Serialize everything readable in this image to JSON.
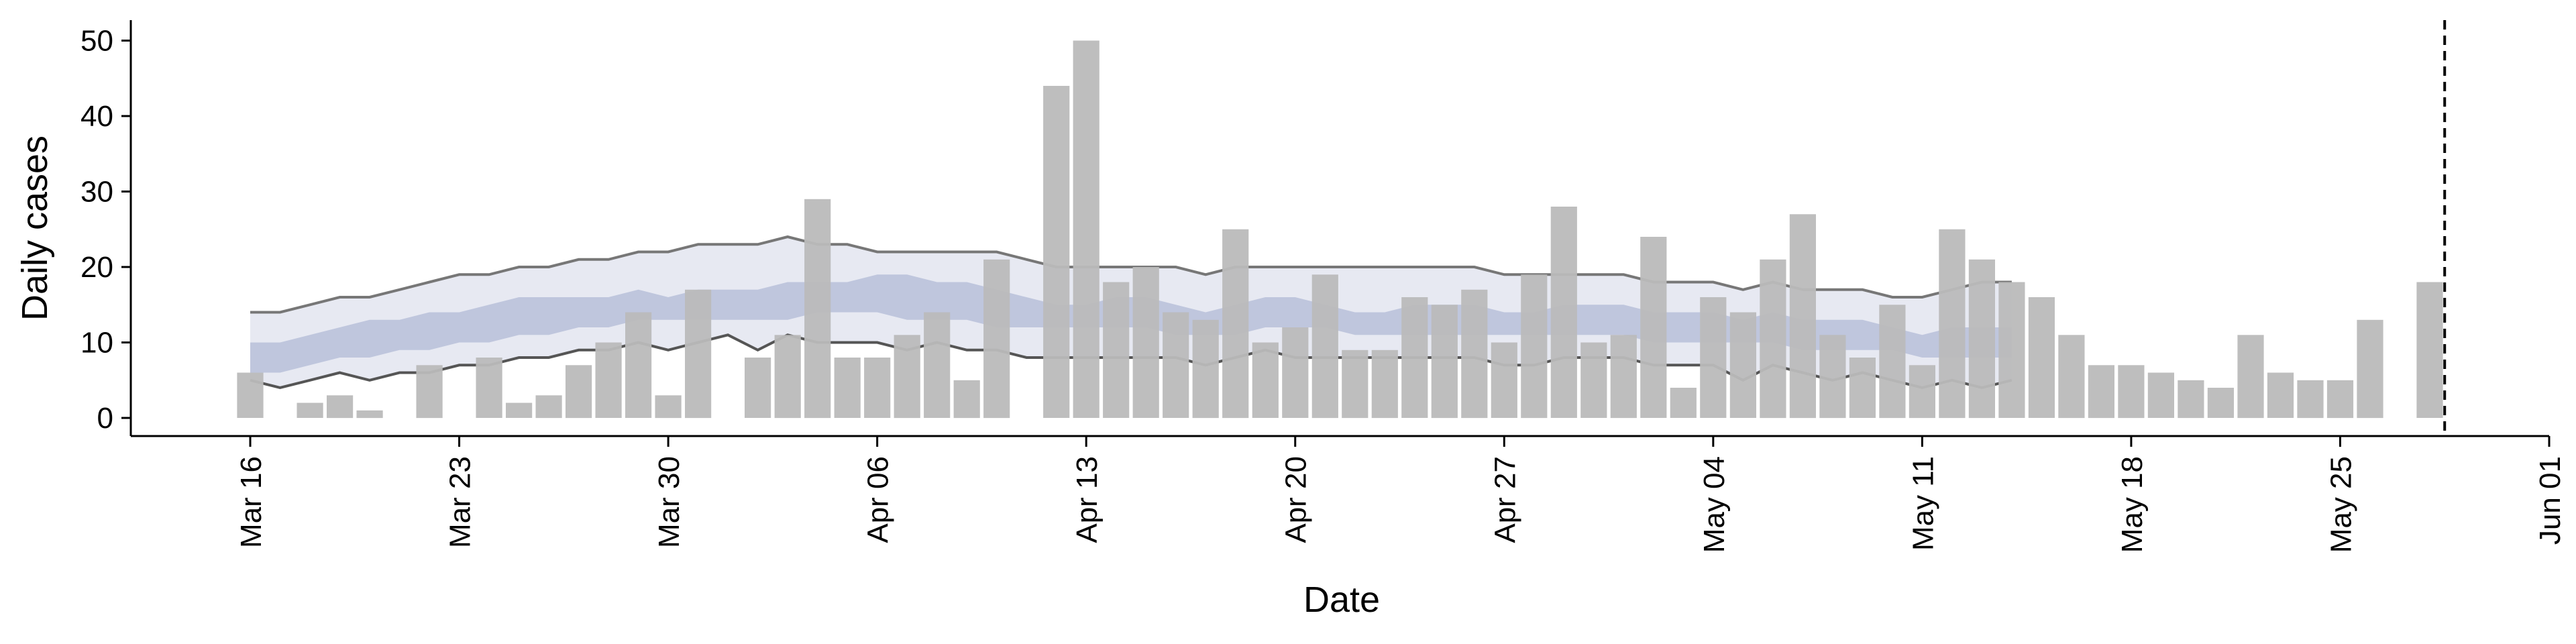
{
  "chart_data": {
    "type": "bar",
    "xlabel": "Date",
    "ylabel": "Daily cases",
    "ylim": [
      0,
      52
    ],
    "y_ticks": [
      0,
      10,
      20,
      30,
      40,
      50
    ],
    "x_tick_labels": [
      "Mar 16",
      "Mar 23",
      "Mar 30",
      "Apr 06",
      "Apr 13",
      "Apr 20",
      "Apr 27",
      "May 04",
      "May 11",
      "May 18",
      "May 25",
      "Jun 01"
    ],
    "x_tick_dates": [
      "2020-03-16",
      "2020-03-23",
      "2020-03-30",
      "2020-04-06",
      "2020-04-13",
      "2020-04-20",
      "2020-04-27",
      "2020-05-04",
      "2020-05-11",
      "2020-05-18",
      "2020-05-25",
      "2020-06-01"
    ],
    "xlim": [
      "2020-03-12",
      "2020-06-01"
    ],
    "grid": false,
    "series": [
      {
        "type": "bar",
        "color": "#bbbbbb",
        "dates": [
          "2020-03-16",
          "2020-03-17",
          "2020-03-18",
          "2020-03-19",
          "2020-03-20",
          "2020-03-21",
          "2020-03-22",
          "2020-03-23",
          "2020-03-24",
          "2020-03-25",
          "2020-03-26",
          "2020-03-27",
          "2020-03-28",
          "2020-03-29",
          "2020-03-30",
          "2020-03-31",
          "2020-04-01",
          "2020-04-02",
          "2020-04-03",
          "2020-04-04",
          "2020-04-05",
          "2020-04-06",
          "2020-04-07",
          "2020-04-08",
          "2020-04-09",
          "2020-04-10",
          "2020-04-11",
          "2020-04-12",
          "2020-04-13",
          "2020-04-14",
          "2020-04-15",
          "2020-04-16",
          "2020-04-17",
          "2020-04-18",
          "2020-04-19",
          "2020-04-20",
          "2020-04-21",
          "2020-04-22",
          "2020-04-23",
          "2020-04-24",
          "2020-04-25",
          "2020-04-26",
          "2020-04-27",
          "2020-04-28",
          "2020-04-29",
          "2020-04-30",
          "2020-05-01",
          "2020-05-02",
          "2020-05-03",
          "2020-05-04",
          "2020-05-05",
          "2020-05-06",
          "2020-05-07",
          "2020-05-08",
          "2020-05-09",
          "2020-05-10",
          "2020-05-11",
          "2020-05-12",
          "2020-05-13",
          "2020-05-14",
          "2020-05-15",
          "2020-05-16",
          "2020-05-17",
          "2020-05-18",
          "2020-05-19",
          "2020-05-20",
          "2020-05-21",
          "2020-05-22",
          "2020-05-23",
          "2020-05-24",
          "2020-05-25",
          "2020-05-26",
          "2020-05-27",
          "2020-05-28",
          "2020-05-29"
        ],
        "values": [
          6,
          0,
          2,
          3,
          1,
          0,
          7,
          0,
          8,
          2,
          3,
          7,
          10,
          14,
          3,
          17,
          0,
          8,
          11,
          29,
          8,
          8,
          11,
          14,
          5,
          21,
          0,
          44,
          50,
          18,
          20,
          14,
          13,
          25,
          10,
          12,
          19,
          9,
          9,
          16,
          15,
          17,
          10,
          19,
          28,
          10,
          11,
          24,
          4,
          16,
          14,
          21,
          27,
          11,
          8,
          15,
          7,
          25,
          21,
          18,
          16,
          11,
          7,
          7,
          6,
          5,
          4,
          11,
          6,
          5,
          5,
          13,
          0,
          18,
          0
        ]
      },
      {
        "type": "band",
        "label": "outer interval",
        "color": "#dfe2ed",
        "dates_start": "2020-03-16",
        "dates_end": "2020-05-14",
        "upper": [
          14,
          14,
          15,
          16,
          16,
          17,
          18,
          19,
          19,
          20,
          20,
          21,
          21,
          22,
          22,
          23,
          23,
          23,
          24,
          23,
          23,
          22,
          22,
          22,
          22,
          22,
          21,
          20,
          20,
          20,
          20,
          20,
          19,
          20,
          20,
          20,
          20,
          20,
          20,
          20,
          20,
          20,
          19,
          19,
          19,
          19,
          19,
          18,
          18,
          18,
          17,
          18,
          17,
          17,
          17,
          16,
          16,
          17,
          18,
          18
        ],
        "lower": [
          5,
          4,
          5,
          6,
          5,
          6,
          6,
          7,
          7,
          8,
          8,
          9,
          9,
          10,
          9,
          10,
          11,
          9,
          11,
          10,
          10,
          10,
          9,
          10,
          9,
          9,
          8,
          8,
          8,
          8,
          8,
          8,
          7,
          8,
          9,
          8,
          8,
          8,
          8,
          8,
          8,
          8,
          7,
          7,
          8,
          8,
          8,
          7,
          7,
          7,
          5,
          7,
          6,
          5,
          6,
          5,
          4,
          5,
          4,
          5
        ]
      },
      {
        "type": "band",
        "label": "inner interval",
        "color": "#b7c0d9",
        "dates_start": "2020-03-16",
        "dates_end": "2020-05-14",
        "upper": [
          10,
          10,
          11,
          12,
          13,
          13,
          14,
          14,
          15,
          16,
          16,
          16,
          16,
          17,
          16,
          17,
          17,
          17,
          18,
          18,
          18,
          19,
          19,
          18,
          18,
          17,
          16,
          15,
          15,
          16,
          16,
          15,
          14,
          15,
          16,
          16,
          15,
          14,
          14,
          15,
          15,
          15,
          14,
          14,
          15,
          15,
          15,
          14,
          14,
          14,
          13,
          14,
          13,
          13,
          13,
          12,
          11,
          12,
          12,
          12
        ],
        "lower": [
          6,
          6,
          7,
          8,
          8,
          9,
          9,
          10,
          10,
          11,
          11,
          12,
          12,
          13,
          13,
          13,
          13,
          13,
          13,
          14,
          14,
          14,
          13,
          13,
          13,
          12,
          12,
          12,
          12,
          12,
          12,
          11,
          11,
          11,
          12,
          12,
          12,
          11,
          11,
          11,
          11,
          11,
          11,
          11,
          11,
          11,
          11,
          10,
          10,
          10,
          10,
          10,
          9,
          9,
          9,
          9,
          8,
          8,
          8,
          8
        ]
      },
      {
        "type": "marker",
        "style": "dashed-vertical",
        "date": "2020-05-28",
        "color": "#000000"
      }
    ]
  }
}
